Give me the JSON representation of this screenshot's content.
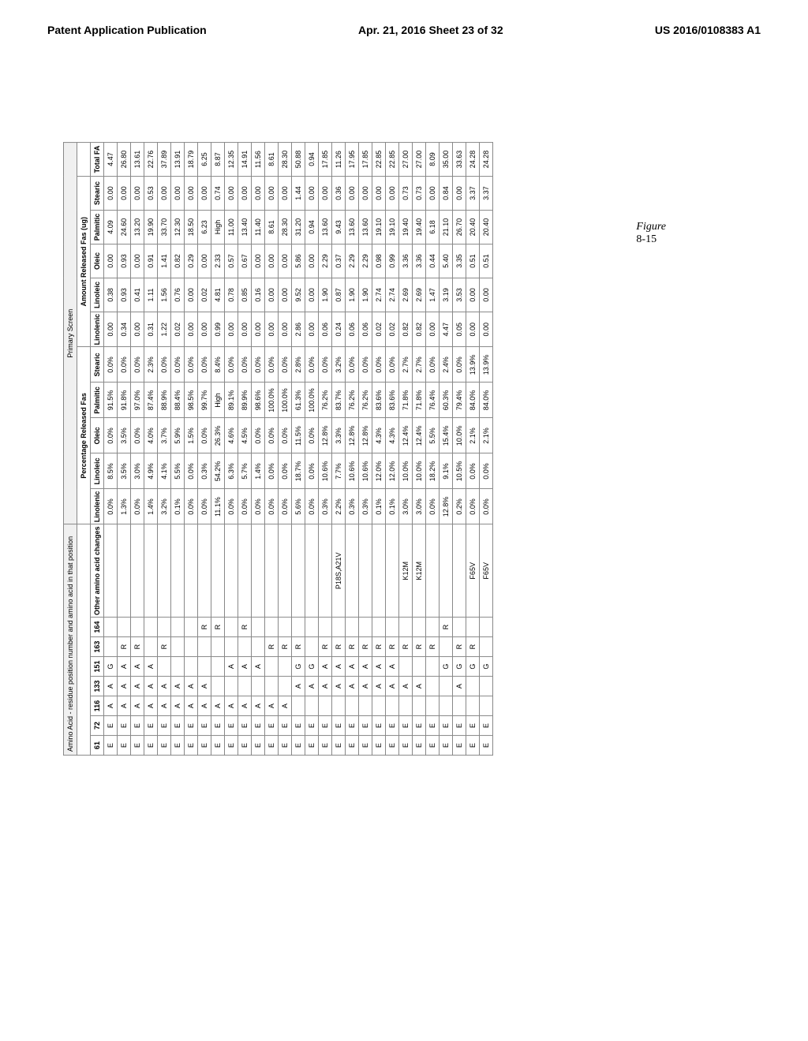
{
  "header": {
    "left": "Patent Application Publication",
    "center": "Apr. 21, 2016  Sheet 23 of 32",
    "right": "US 2016/0108383 A1"
  },
  "figure_label": "Figure",
  "figure_number": "8-15",
  "table": {
    "group_headers": {
      "amino": "Amino Acid - residue position number and amino acid in that position",
      "primary": "Primary Screen",
      "percentage": "Percentage Released Fas",
      "amount": "Amount Released Fas (ug)"
    },
    "columns_amino": [
      "61",
      "72",
      "116",
      "133",
      "151",
      "163",
      "164",
      "Other amino acid changes"
    ],
    "columns_pct": [
      "Linolenic",
      "Linoleic",
      "Oleic",
      "Palmitic",
      "Stearic"
    ],
    "columns_amt": [
      "Linolenic",
      "Linoleic",
      "Oleic",
      "Palmitic",
      "Stearic"
    ],
    "columns_total": [
      "Total FA"
    ],
    "rows": [
      {
        "a": [
          "E",
          "E",
          "A",
          "A",
          "G",
          "",
          "",
          ""
        ],
        "p": [
          "0.0%",
          "8.5%",
          "0.0%",
          "91.5%",
          "0.0%"
        ],
        "m": [
          "0.00",
          "0.38",
          "0.00",
          "4.09",
          "0.00"
        ],
        "t": "4.47"
      },
      {
        "a": [
          "E",
          "E",
          "A",
          "A",
          "A",
          "R",
          "",
          ""
        ],
        "p": [
          "1.3%",
          "3.5%",
          "3.5%",
          "91.8%",
          "0.0%"
        ],
        "m": [
          "0.34",
          "0.93",
          "0.93",
          "24.60",
          "0.00"
        ],
        "t": "26.80"
      },
      {
        "a": [
          "E",
          "E",
          "A",
          "A",
          "A",
          "R",
          "",
          ""
        ],
        "p": [
          "0.0%",
          "3.0%",
          "0.0%",
          "97.0%",
          "0.0%"
        ],
        "m": [
          "0.00",
          "0.41",
          "0.00",
          "13.20",
          "0.00"
        ],
        "t": "13.61"
      },
      {
        "a": [
          "E",
          "E",
          "A",
          "A",
          "A",
          "",
          "",
          ""
        ],
        "p": [
          "1.4%",
          "4.9%",
          "4.0%",
          "87.4%",
          "2.3%"
        ],
        "m": [
          "0.31",
          "1.11",
          "0.91",
          "19.90",
          "0.53"
        ],
        "t": "22.76"
      },
      {
        "a": [
          "E",
          "E",
          "A",
          "A",
          "",
          "R",
          "",
          ""
        ],
        "p": [
          "3.2%",
          "4.1%",
          "3.7%",
          "88.9%",
          "0.0%"
        ],
        "m": [
          "1.22",
          "1.56",
          "1.41",
          "33.70",
          "0.00"
        ],
        "t": "37.89"
      },
      {
        "a": [
          "E",
          "E",
          "A",
          "A",
          "",
          "",
          "",
          ""
        ],
        "p": [
          "0.1%",
          "5.5%",
          "5.9%",
          "88.4%",
          "0.0%"
        ],
        "m": [
          "0.02",
          "0.76",
          "0.82",
          "12.30",
          "0.00"
        ],
        "t": "13.91"
      },
      {
        "a": [
          "E",
          "E",
          "A",
          "A",
          "",
          "",
          "",
          ""
        ],
        "p": [
          "0.0%",
          "0.0%",
          "1.5%",
          "98.5%",
          "0.0%"
        ],
        "m": [
          "0.00",
          "0.00",
          "0.29",
          "18.50",
          "0.00"
        ],
        "t": "18.79"
      },
      {
        "a": [
          "E",
          "E",
          "A",
          "A",
          "",
          "",
          "R",
          ""
        ],
        "p": [
          "0.0%",
          "0.3%",
          "0.0%",
          "99.7%",
          "0.0%"
        ],
        "m": [
          "0.00",
          "0.02",
          "0.00",
          "6.23",
          "0.00"
        ],
        "t": "6.25"
      },
      {
        "a": [
          "E",
          "E",
          "A",
          "",
          "",
          "",
          "R",
          ""
        ],
        "p": [
          "11.1%",
          "54.2%",
          "26.3%",
          "High",
          "8.4%"
        ],
        "m": [
          "0.99",
          "4.81",
          "2.33",
          "High",
          "0.74"
        ],
        "t": "8.87"
      },
      {
        "a": [
          "E",
          "E",
          "A",
          "",
          "A",
          "",
          "",
          ""
        ],
        "p": [
          "0.0%",
          "6.3%",
          "4.6%",
          "89.1%",
          "0.0%"
        ],
        "m": [
          "0.00",
          "0.78",
          "0.57",
          "11.00",
          "0.00"
        ],
        "t": "12.35"
      },
      {
        "a": [
          "E",
          "E",
          "A",
          "",
          "A",
          "",
          "R",
          ""
        ],
        "p": [
          "0.0%",
          "5.7%",
          "4.5%",
          "89.9%",
          "0.0%"
        ],
        "m": [
          "0.00",
          "0.85",
          "0.67",
          "13.40",
          "0.00"
        ],
        "t": "14.91"
      },
      {
        "a": [
          "E",
          "E",
          "A",
          "",
          "A",
          "",
          "",
          ""
        ],
        "p": [
          "0.0%",
          "1.4%",
          "0.0%",
          "98.6%",
          "0.0%"
        ],
        "m": [
          "0.00",
          "0.16",
          "0.00",
          "11.40",
          "0.00"
        ],
        "t": "11.56"
      },
      {
        "a": [
          "E",
          "E",
          "A",
          "",
          "",
          "R",
          "",
          ""
        ],
        "p": [
          "0.0%",
          "0.0%",
          "0.0%",
          "100.0%",
          "0.0%"
        ],
        "m": [
          "0.00",
          "0.00",
          "0.00",
          "8.61",
          "0.00"
        ],
        "t": "8.61"
      },
      {
        "a": [
          "E",
          "E",
          "A",
          "",
          "",
          "R",
          "",
          ""
        ],
        "p": [
          "0.0%",
          "0.0%",
          "0.0%",
          "100.0%",
          "0.0%"
        ],
        "m": [
          "0.00",
          "0.00",
          "0.00",
          "28.30",
          "0.00"
        ],
        "t": "28.30"
      },
      {
        "a": [
          "E",
          "E",
          "",
          "A",
          "G",
          "R",
          "",
          ""
        ],
        "p": [
          "5.6%",
          "18.7%",
          "11.5%",
          "61.3%",
          "2.8%"
        ],
        "m": [
          "2.86",
          "9.52",
          "5.86",
          "31.20",
          "1.44"
        ],
        "t": "50.88"
      },
      {
        "a": [
          "E",
          "E",
          "",
          "A",
          "G",
          "",
          "",
          ""
        ],
        "p": [
          "0.0%",
          "0.0%",
          "0.0%",
          "100.0%",
          "0.0%"
        ],
        "m": [
          "0.00",
          "0.00",
          "0.00",
          "0.94",
          "0.00"
        ],
        "t": "0.94"
      },
      {
        "a": [
          "E",
          "E",
          "",
          "A",
          "A",
          "R",
          "",
          ""
        ],
        "p": [
          "0.3%",
          "10.6%",
          "12.8%",
          "76.2%",
          "0.0%"
        ],
        "m": [
          "0.06",
          "1.90",
          "2.29",
          "13.60",
          "0.00"
        ],
        "t": "17.85"
      },
      {
        "a": [
          "E",
          "E",
          "",
          "A",
          "A",
          "R",
          "",
          "P18S,A21V"
        ],
        "p": [
          "2.2%",
          "7.7%",
          "3.3%",
          "83.7%",
          "3.2%"
        ],
        "m": [
          "0.24",
          "0.87",
          "0.37",
          "9.43",
          "0.36"
        ],
        "t": "11.26"
      },
      {
        "a": [
          "E",
          "E",
          "",
          "A",
          "A",
          "R",
          "",
          ""
        ],
        "p": [
          "0.3%",
          "10.6%",
          "12.8%",
          "76.2%",
          "0.0%"
        ],
        "m": [
          "0.06",
          "1.90",
          "2.29",
          "13.60",
          "0.00"
        ],
        "t": "17.95"
      },
      {
        "a": [
          "E",
          "E",
          "",
          "A",
          "A",
          "R",
          "",
          ""
        ],
        "p": [
          "0.3%",
          "10.6%",
          "12.8%",
          "76.2%",
          "0.0%"
        ],
        "m": [
          "0.06",
          "1.90",
          "2.29",
          "13.60",
          "0.00"
        ],
        "t": "17.85"
      },
      {
        "a": [
          "E",
          "E",
          "",
          "A",
          "A",
          "R",
          "",
          ""
        ],
        "p": [
          "0.1%",
          "12.0%",
          "4.3%",
          "83.6%",
          "0.0%"
        ],
        "m": [
          "0.02",
          "2.74",
          "0.98",
          "19.10",
          "0.00"
        ],
        "t": "22.85"
      },
      {
        "a": [
          "E",
          "E",
          "",
          "A",
          "A",
          "R",
          "",
          ""
        ],
        "p": [
          "0.1%",
          "12.0%",
          "4.3%",
          "83.6%",
          "0.0%"
        ],
        "m": [
          "0.02",
          "2.74",
          "0.99",
          "19.10",
          "0.00"
        ],
        "t": "22.85"
      },
      {
        "a": [
          "E",
          "E",
          "",
          "A",
          "",
          "R",
          "",
          "K12M"
        ],
        "p": [
          "3.0%",
          "10.0%",
          "12.4%",
          "71.8%",
          "2.7%"
        ],
        "m": [
          "0.82",
          "2.69",
          "3.36",
          "19.40",
          "0.73"
        ],
        "t": "27.00"
      },
      {
        "a": [
          "E",
          "E",
          "",
          "A",
          "",
          "R",
          "",
          "K12M"
        ],
        "p": [
          "3.0%",
          "10.0%",
          "12.4%",
          "71.8%",
          "2.7%"
        ],
        "m": [
          "0.82",
          "2.69",
          "3.36",
          "19.40",
          "0.73"
        ],
        "t": "27.00"
      },
      {
        "a": [
          "E",
          "E",
          "",
          "",
          "",
          "R",
          "",
          ""
        ],
        "p": [
          "0.0%",
          "18.2%",
          "5.5%",
          "76.4%",
          "0.0%"
        ],
        "m": [
          "0.00",
          "1.47",
          "0.44",
          "6.18",
          "0.00"
        ],
        "t": "8.09"
      },
      {
        "a": [
          "E",
          "E",
          "",
          "",
          "G",
          "",
          "R",
          ""
        ],
        "p": [
          "12.8%",
          "9.1%",
          "15.4%",
          "60.3%",
          "2.4%"
        ],
        "m": [
          "4.47",
          "3.19",
          "5.40",
          "21.10",
          "0.84"
        ],
        "t": "35.00"
      },
      {
        "a": [
          "E",
          "E",
          "",
          "A",
          "G",
          "R",
          "",
          ""
        ],
        "p": [
          "0.2%",
          "10.5%",
          "10.0%",
          "79.4%",
          "0.0%"
        ],
        "m": [
          "0.05",
          "3.53",
          "3.35",
          "26.70",
          "0.00"
        ],
        "t": "33.63"
      },
      {
        "a": [
          "E",
          "E",
          "",
          "",
          "G",
          "R",
          "",
          "F65V"
        ],
        "p": [
          "0.0%",
          "0.0%",
          "2.1%",
          "84.0%",
          "13.9%"
        ],
        "m": [
          "0.00",
          "0.00",
          "0.51",
          "20.40",
          "3.37"
        ],
        "t": "24.28"
      },
      {
        "a": [
          "E",
          "E",
          "",
          "",
          "G",
          "",
          "",
          "F65V"
        ],
        "p": [
          "0.0%",
          "0.0%",
          "2.1%",
          "84.0%",
          "13.9%"
        ],
        "m": [
          "0.00",
          "0.00",
          "0.51",
          "20.40",
          "3.37"
        ],
        "t": "24.28"
      }
    ]
  }
}
